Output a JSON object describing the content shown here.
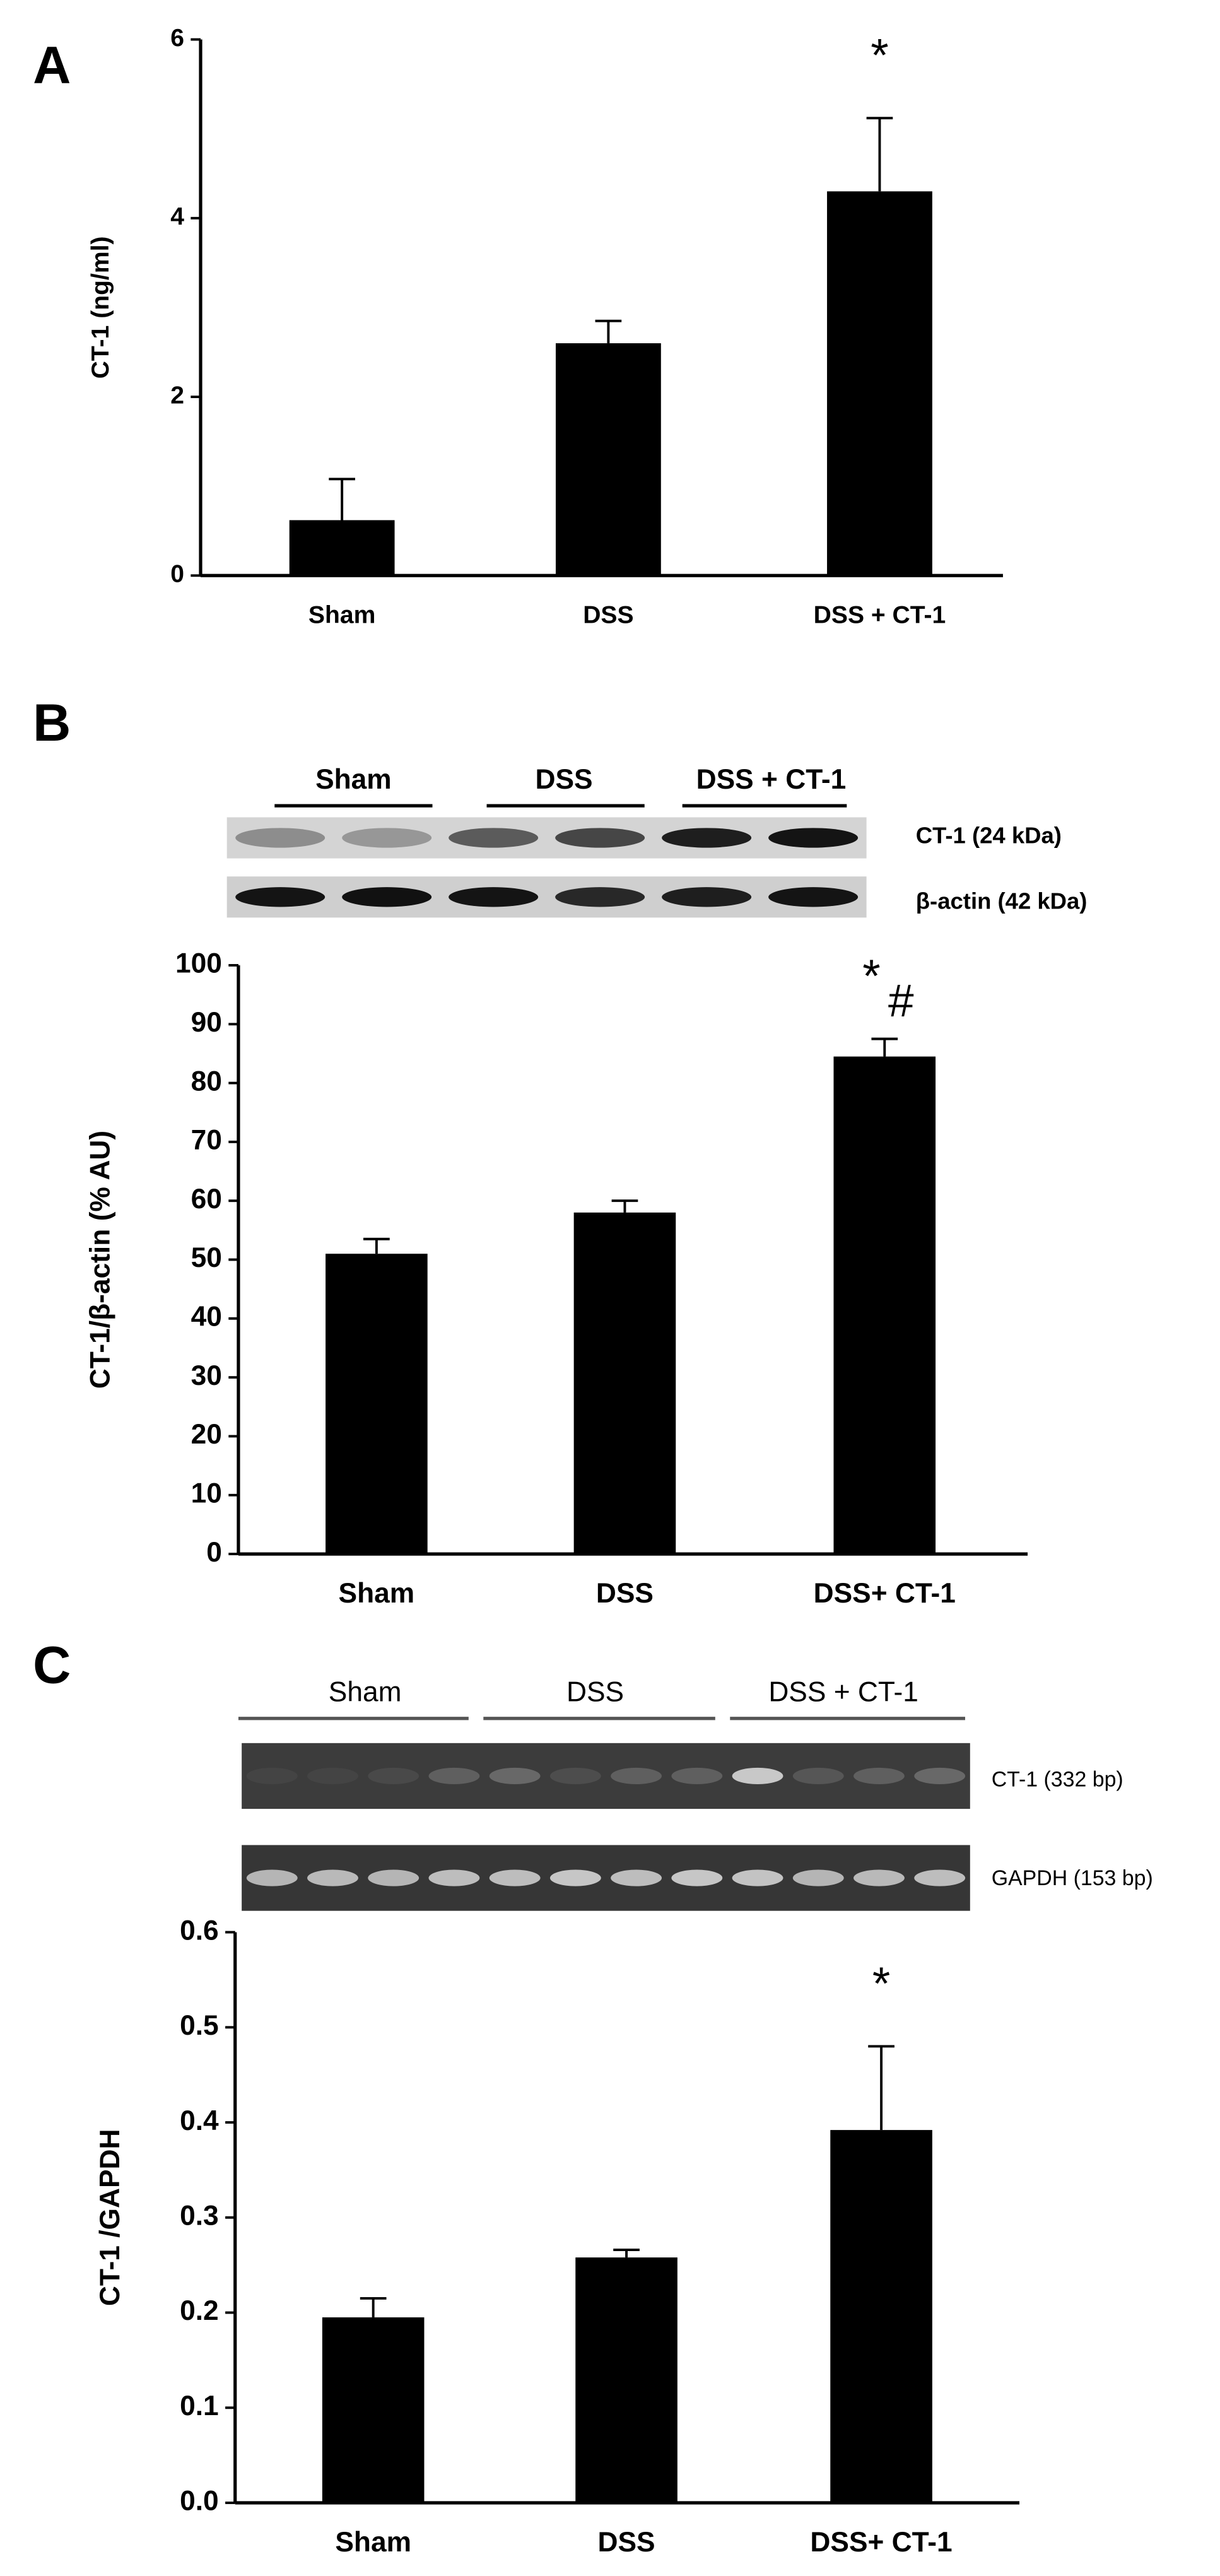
{
  "chart_data": [
    {
      "type": "bar",
      "panel_label": "A",
      "ylabel": "CT-1 (ng/ml)",
      "categories": [
        "Sham",
        "DSS",
        "DSS + CT-1"
      ],
      "values": [
        0.62,
        2.6,
        4.3
      ],
      "errors": [
        0.46,
        0.25,
        0.82
      ],
      "color": "#000000",
      "ylim": [
        0,
        6
      ],
      "yticks": [
        0,
        2,
        4,
        6
      ],
      "annotations": [
        "*"
      ]
    },
    {
      "type": "bar",
      "panel_label": "B",
      "ylabel": "CT-1/β-actin (% AU)",
      "categories": [
        "Sham",
        "DSS",
        "DSS+ CT-1"
      ],
      "values": [
        51,
        58,
        84.5
      ],
      "errors": [
        2.5,
        2,
        3
      ],
      "color": "#000000",
      "ylim": [
        0,
        100
      ],
      "yticks": [
        0,
        10,
        20,
        30,
        40,
        50,
        60,
        70,
        80,
        90,
        100
      ],
      "annotations": [
        "*",
        "#"
      ],
      "blot": {
        "groups": [
          "Sham",
          "DSS",
          "DSS + CT-1"
        ],
        "bands": [
          "CT-1 (24 kDa)",
          "β-actin (42 kDa)"
        ]
      }
    },
    {
      "type": "bar",
      "panel_label": "C",
      "ylabel": "CT-1 /GAPDH",
      "categories": [
        "Sham",
        "DSS",
        "DSS+ CT-1"
      ],
      "values": [
        0.195,
        0.258,
        0.392
      ],
      "errors": [
        0.02,
        0.008,
        0.088
      ],
      "color": "#000000",
      "ylim": [
        0,
        0.6
      ],
      "yticks": [
        {
          "value": 0,
          "label": "0.0"
        },
        0.1,
        0.2,
        0.3,
        0.4,
        0.5,
        0.6
      ],
      "annotations": [
        "*"
      ],
      "blot": {
        "groups": [
          "Sham",
          "DSS",
          "DSS + CT-1"
        ],
        "bands": [
          "CT-1 (332 bp)",
          "GAPDH (153 bp)"
        ]
      }
    }
  ]
}
